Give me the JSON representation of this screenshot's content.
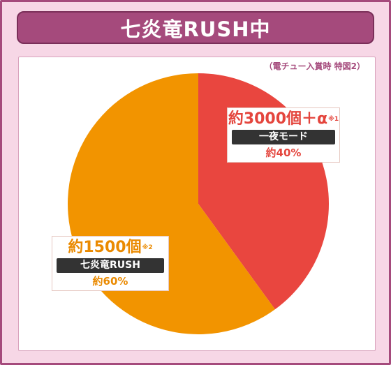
{
  "title": "七炎竜RUSH中",
  "note": "（電チュー入賞時 特図2）",
  "chart_data": {
    "type": "pie",
    "title": "七炎竜RUSH中",
    "subtitle": "（電チュー入賞時 特図2）",
    "slices": [
      {
        "amount": "約3000個＋α",
        "footnote": "※1",
        "mode": "一夜モード",
        "percent_label": "約40%",
        "value": 40,
        "color": "#e9463f"
      },
      {
        "amount": "約1500個",
        "footnote": "※2",
        "mode": "七炎竜RUSH",
        "percent_label": "約60%",
        "value": 60,
        "color": "#f29400"
      }
    ],
    "colors": {
      "slice1": "#e9463f",
      "slice2": "#f29400",
      "frame": "#a54a7c",
      "background": "#f7d7e6"
    }
  }
}
